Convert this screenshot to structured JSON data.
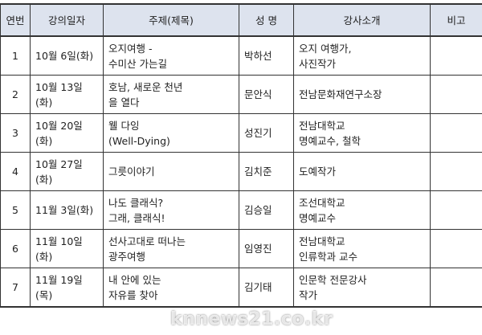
{
  "headers": [
    "연번",
    "강의일자",
    "주제(제목)",
    "성 명",
    "강사소개",
    "비고"
  ],
  "rows": [
    {
      "no": "1",
      "date": "10월  6일(화)",
      "topic": "오지여행 -\n수미산 가는길",
      "name": "박하선",
      "intro": "오지 여행가,\n사진작가",
      "note": ""
    },
    {
      "no": "2",
      "date": "10월 13일(화)",
      "topic": "호남, 새로운 천년\n을 열다",
      "name": "문안식",
      "intro": "전남문화재연구소장",
      "note": ""
    },
    {
      "no": "3",
      "date": "10월 20일(화)",
      "topic": "웰 다잉\n(Well-Dying)",
      "name": "성진기",
      "intro": "전남대학교\n명예교수, 철학",
      "note": ""
    },
    {
      "no": "4",
      "date": "10월 27일(화)",
      "topic": "그릇이야기",
      "name": "김치준",
      "intro": "도예작가",
      "note": ""
    },
    {
      "no": "5",
      "date": "11월  3일(화)",
      "topic": "나도 클래식?\n그래, 클래식!",
      "name": "김승일",
      "intro": "조선대학교\n명예교수",
      "note": ""
    },
    {
      "no": "6",
      "date": "11월 10일(화)",
      "topic": "선사고대로  떠나는\n광주여행",
      "name": "임영진",
      "intro": "전남대학교\n인류학과 교수",
      "note": ""
    },
    {
      "no": "7",
      "date": "11월 19일(목)",
      "topic": "내 안에 있는\n자유를 찾아",
      "name": "김기태",
      "intro": "인문학 전문강사\n작가",
      "note": ""
    }
  ],
  "watermark": "knnews21.co.kr"
}
